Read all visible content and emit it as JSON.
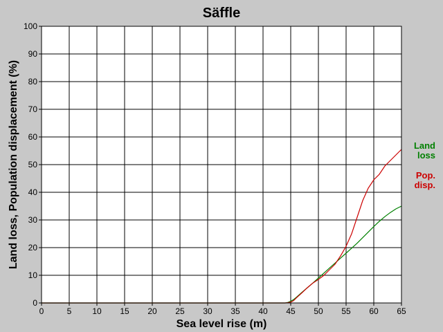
{
  "chart_data": {
    "type": "line",
    "title": "Säffle",
    "xlabel": "Sea level rise (m)",
    "ylabel": "Land loss, Population displacement (%)",
    "xlim": [
      0,
      65
    ],
    "ylim": [
      0,
      100
    ],
    "xticks": [
      "0",
      "5",
      "10",
      "15",
      "20",
      "25",
      "30",
      "35",
      "40",
      "45",
      "50",
      "55",
      "60",
      "65"
    ],
    "yticks": [
      "0",
      "10",
      "20",
      "30",
      "40",
      "50",
      "60",
      "70",
      "80",
      "90",
      "100"
    ],
    "grid": true,
    "legend_position": "right",
    "series": [
      {
        "name_lines": [
          "Land",
          "loss"
        ],
        "color": "#008000",
        "x": [
          0,
          44,
          44.5,
          45,
          45.5,
          46,
          47,
          48,
          49,
          50,
          51,
          52,
          53,
          54,
          55,
          56,
          57,
          58,
          59,
          60,
          61,
          62,
          63,
          64,
          65
        ],
        "y": [
          0,
          0,
          0.2,
          0.6,
          1.2,
          2.0,
          3.8,
          5.5,
          7.2,
          9.0,
          10.8,
          12.6,
          14.4,
          16.2,
          18.0,
          19.8,
          21.6,
          23.6,
          25.6,
          27.6,
          29.5,
          31.2,
          32.7,
          34.0,
          35.0
        ]
      },
      {
        "name_lines": [
          "Pop.",
          "disp."
        ],
        "color": "#cc0000",
        "x": [
          0,
          44,
          44.5,
          45,
          45.5,
          46,
          47,
          48,
          49,
          50,
          51,
          52,
          53,
          54,
          55,
          56,
          57,
          58,
          59,
          60,
          61,
          62,
          63,
          64,
          65
        ],
        "y": [
          0,
          0,
          0.1,
          0.3,
          0.8,
          1.8,
          3.6,
          5.5,
          7.2,
          8.5,
          10.0,
          12.0,
          14.0,
          17.0,
          20.5,
          25.0,
          31.0,
          37.0,
          41.5,
          44.5,
          46.5,
          49.5,
          51.5,
          53.5,
          55.5
        ]
      }
    ]
  }
}
